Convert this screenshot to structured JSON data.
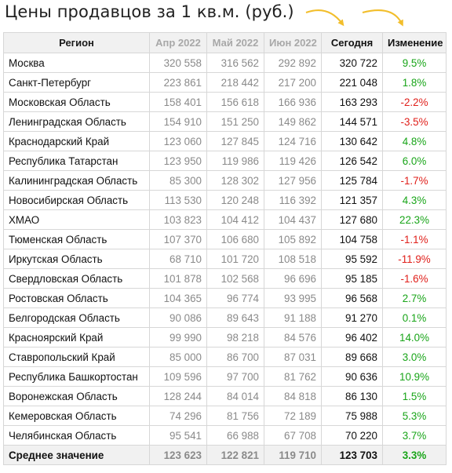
{
  "title": "Цены продавцов за 1 кв.м. (руб.)",
  "colors": {
    "positive": "#19a519",
    "negative": "#e0201b",
    "highlight": "#f7f1a7",
    "arrow": "#f2be2b"
  },
  "icons": [
    "curved-arrow-icon",
    "curved-arrow-icon"
  ],
  "columns": [
    "Регион",
    "Апр 2022",
    "Май 2022",
    "Июн 2022",
    "Сегодня",
    "Изменение"
  ],
  "rows": [
    {
      "region": "Москва",
      "apr": "320 558",
      "may": "316 562",
      "jun": "292 892",
      "today": "320 722",
      "change": "9.5%",
      "dir": "pos"
    },
    {
      "region": "Санкт-Петербург",
      "apr": "223 861",
      "may": "218 442",
      "jun": "217 200",
      "today": "221 048",
      "change": "1.8%",
      "dir": "pos"
    },
    {
      "region": "Московская Область",
      "apr": "158 401",
      "may": "156 618",
      "jun": "166 936",
      "today": "163 293",
      "change": "-2.2%",
      "dir": "neg"
    },
    {
      "region": "Ленинградская Область",
      "apr": "154 910",
      "may": "151 250",
      "jun": "149 862",
      "today": "144 571",
      "change": "-3.5%",
      "dir": "neg"
    },
    {
      "region": "Краснодарский Край",
      "apr": "123 060",
      "may": "127 845",
      "jun": "124 716",
      "today": "130 642",
      "change": "4.8%",
      "dir": "pos"
    },
    {
      "region": "Республика Татарстан",
      "apr": "123 950",
      "may": "119 986",
      "jun": "119 426",
      "today": "126 542",
      "change": "6.0%",
      "dir": "pos"
    },
    {
      "region": "Калининградская Область",
      "apr": "85 300",
      "may": "128 302",
      "jun": "127 956",
      "today": "125 784",
      "change": "-1.7%",
      "dir": "neg"
    },
    {
      "region": "Новосибирская Область",
      "apr": "113 530",
      "may": "120 248",
      "jun": "116 392",
      "today": "121 357",
      "change": "4.3%",
      "dir": "pos"
    },
    {
      "region": "ХМАО",
      "apr": "103 823",
      "may": "104 412",
      "jun": "104 437",
      "today": "127 680",
      "change": "22.3%",
      "dir": "pos"
    },
    {
      "region": "Тюменская Область",
      "apr": "107 370",
      "may": "106 680",
      "jun": "105 892",
      "today": "104 758",
      "change": "-1.1%",
      "dir": "neg"
    },
    {
      "region": "Иркутская Область",
      "apr": "68 710",
      "may": "101 720",
      "jun": "108 518",
      "today": "95 592",
      "change": "-11.9%",
      "dir": "neg"
    },
    {
      "region": "Свердловская Область",
      "apr": "101 878",
      "may": "102 568",
      "jun": "96 696",
      "today": "95 185",
      "change": "-1.6%",
      "dir": "neg"
    },
    {
      "region": "Ростовская Область",
      "apr": "104 365",
      "may": "96 774",
      "jun": "93 995",
      "today": "96 568",
      "change": "2.7%",
      "dir": "pos"
    },
    {
      "region": "Белгородская Область",
      "apr": "90 086",
      "may": "89 643",
      "jun": "91 188",
      "today": "91 270",
      "change": "0.1%",
      "dir": "pos"
    },
    {
      "region": "Красноярский Край",
      "apr": "99 990",
      "may": "98 218",
      "jun": "84 576",
      "today": "96 402",
      "change": "14.0%",
      "dir": "pos"
    },
    {
      "region": "Ставропольский Край",
      "apr": "85 000",
      "may": "86 700",
      "jun": "87 031",
      "today": "89 668",
      "change": "3.0%",
      "dir": "pos"
    },
    {
      "region": "Республика Башкортостан",
      "apr": "109 596",
      "may": "97 700",
      "jun": "81 762",
      "today": "90 636",
      "change": "10.9%",
      "dir": "pos"
    },
    {
      "region": "Воронежская Область",
      "apr": "128 244",
      "may": "84 014",
      "jun": "84 818",
      "today": "86 130",
      "change": "1.5%",
      "dir": "pos"
    },
    {
      "region": "Кемеровская Область",
      "apr": "74 296",
      "may": "81 756",
      "jun": "72 189",
      "today": "75 988",
      "change": "5.3%",
      "dir": "pos"
    },
    {
      "region": "Челябинская Область",
      "apr": "95 541",
      "may": "66 988",
      "jun": "67 708",
      "today": "70 220",
      "change": "3.7%",
      "dir": "pos"
    }
  ],
  "average": {
    "region": "Среднее значение",
    "apr": "123 623",
    "may": "122 821",
    "jun": "119 710",
    "today": "123 703",
    "change": "3.3%",
    "dir": "pos"
  }
}
